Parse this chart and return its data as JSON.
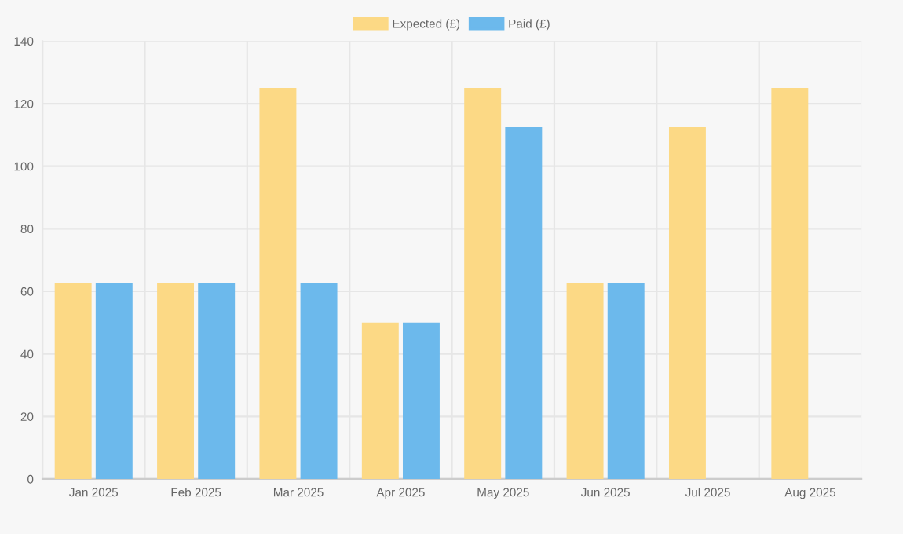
{
  "chart_data": {
    "type": "bar",
    "categories": [
      "Jan 2025",
      "Feb 2025",
      "Mar 2025",
      "Apr 2025",
      "May 2025",
      "Jun 2025",
      "Jul 2025",
      "Aug 2025"
    ],
    "series": [
      {
        "name": "Expected (£)",
        "color": "#fcd985",
        "values": [
          62.5,
          62.5,
          125,
          50,
          125,
          62.5,
          112.5,
          125
        ]
      },
      {
        "name": "Paid (£)",
        "color": "#6cb9ec",
        "values": [
          62.5,
          62.5,
          62.5,
          50,
          112.5,
          62.5,
          null,
          null
        ]
      }
    ],
    "ylim": [
      0,
      140
    ],
    "yticks": [
      0,
      20,
      40,
      60,
      80,
      100,
      120,
      140
    ],
    "grid": true,
    "legend": "top"
  }
}
